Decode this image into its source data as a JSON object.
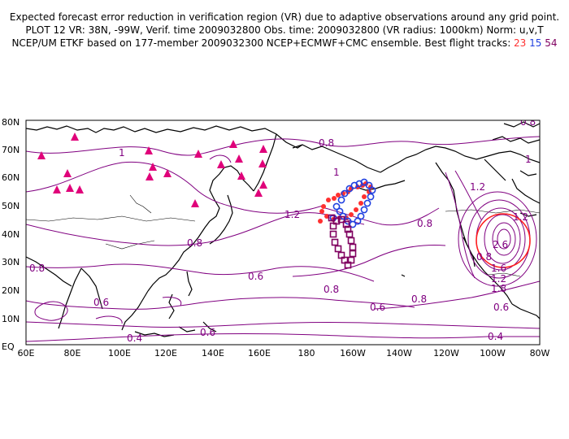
{
  "header": {
    "line1": "Expected forecast error reduction in verification region (VR) due to adaptive observations around any grid point.",
    "line2": "PLOT 12 VR: 38N, -99W, Verif. time 2009032800 Obs. time: 2009032800 (VR radius: 1000km) Norm: u,v,T",
    "line3_prefix": "NCEP/UM ETKF based on 177-member 2009032300 NCEP+ECMWF+CMC ensemble. Best flight tracks: ",
    "tracks": [
      {
        "id": "23",
        "color": "#ff3030"
      },
      {
        "id": "15",
        "color": "#2040e0"
      },
      {
        "id": "54",
        "color": "#800060"
      }
    ]
  },
  "map": {
    "lat_labels": [
      "80N",
      "70N",
      "60N",
      "50N",
      "40N",
      "30N",
      "20N",
      "10N",
      "EQ"
    ],
    "lon_labels": [
      "60E",
      "80E",
      "100E",
      "120E",
      "140E",
      "160E",
      "180",
      "160W",
      "140W",
      "120W",
      "100W",
      "80W"
    ],
    "contour_color": "#800080",
    "vr_circle_color": "#ff2020",
    "dropsonde_color": "#e0007a",
    "contour_labels": [
      {
        "text": "0.8",
        "note": "top right"
      },
      {
        "text": "0.8"
      },
      {
        "text": "1"
      },
      {
        "text": "1"
      },
      {
        "text": "1.2"
      },
      {
        "text": "0.8"
      },
      {
        "text": "0.6"
      },
      {
        "text": "0.8"
      },
      {
        "text": "0.6"
      },
      {
        "text": "0.8"
      },
      {
        "text": "0.6"
      },
      {
        "text": "0.8"
      },
      {
        "text": "0.6"
      },
      {
        "text": "0.4"
      },
      {
        "text": "1.2"
      },
      {
        "text": "0.8"
      },
      {
        "text": "0.8"
      },
      {
        "text": "0.6"
      },
      {
        "text": "0.4"
      },
      {
        "text": "1.2"
      },
      {
        "text": "2.6"
      },
      {
        "text": "1.6"
      },
      {
        "text": "1.2"
      },
      {
        "text": "1.8"
      },
      {
        "text": "1"
      }
    ]
  }
}
